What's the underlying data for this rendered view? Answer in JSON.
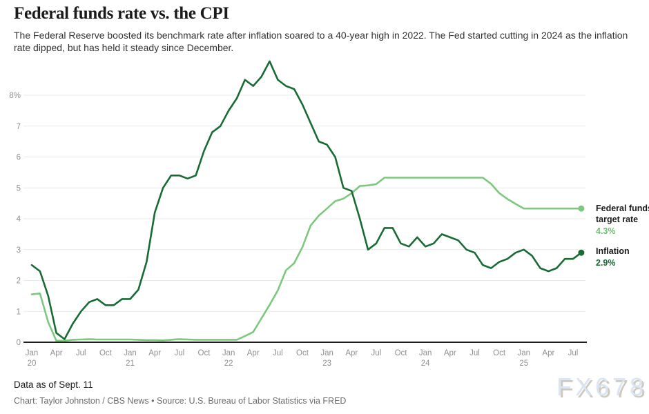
{
  "header": {
    "title": "Federal funds rate vs. the CPI",
    "subtitle": "The Federal Reserve boosted its benchmark rate after inflation soared to a 40-year high in 2022. The Fed started cutting in 2024 as the inflation rate dipped, but has held it steady since December."
  },
  "chart_data": {
    "type": "line",
    "x_start_month": "Jan 2020",
    "x_end_month": "Aug 2025",
    "x_interval": "monthly",
    "grid": "horizontal",
    "ylim": [
      0,
      9.1
    ],
    "y_ticks": [
      {
        "value": 0,
        "label": "0"
      },
      {
        "value": 1,
        "label": "1"
      },
      {
        "value": 2,
        "label": "2"
      },
      {
        "value": 3,
        "label": "3"
      },
      {
        "value": 4,
        "label": "4"
      },
      {
        "value": 5,
        "label": "5"
      },
      {
        "value": 6,
        "label": "6"
      },
      {
        "value": 7,
        "label": "7"
      },
      {
        "value": 8,
        "label": "8%"
      }
    ],
    "x_ticks": [
      {
        "index": 0,
        "label": "Jan",
        "year": "20"
      },
      {
        "index": 3,
        "label": "Apr"
      },
      {
        "index": 6,
        "label": "Jul"
      },
      {
        "index": 9,
        "label": "Oct"
      },
      {
        "index": 12,
        "label": "Jan",
        "year": "21"
      },
      {
        "index": 15,
        "label": "Apr"
      },
      {
        "index": 18,
        "label": "Jul"
      },
      {
        "index": 21,
        "label": "Oct"
      },
      {
        "index": 24,
        "label": "Jan",
        "year": "22"
      },
      {
        "index": 27,
        "label": "Apr"
      },
      {
        "index": 30,
        "label": "Jul"
      },
      {
        "index": 33,
        "label": "Oct"
      },
      {
        "index": 36,
        "label": "Jan",
        "year": "23"
      },
      {
        "index": 39,
        "label": "Apr"
      },
      {
        "index": 42,
        "label": "Jul"
      },
      {
        "index": 45,
        "label": "Oct"
      },
      {
        "index": 48,
        "label": "Jan",
        "year": "24"
      },
      {
        "index": 51,
        "label": "Apr"
      },
      {
        "index": 54,
        "label": "Jul"
      },
      {
        "index": 57,
        "label": "Oct"
      },
      {
        "index": 60,
        "label": "Jan",
        "year": "25"
      },
      {
        "index": 63,
        "label": "Apr"
      },
      {
        "index": 66,
        "label": "Jul"
      }
    ],
    "series": [
      {
        "id": "federal-funds",
        "name": "Federal funds target rate",
        "label_line1": "Federal funds",
        "label_line2": "target rate",
        "value_label": "4.3%",
        "color": "#7ec77f",
        "value_color": "#72bd75",
        "values": [
          1.55,
          1.58,
          0.65,
          0.05,
          0.05,
          0.08,
          0.09,
          0.1,
          0.09,
          0.09,
          0.09,
          0.09,
          0.09,
          0.08,
          0.07,
          0.07,
          0.06,
          0.08,
          0.1,
          0.09,
          0.08,
          0.08,
          0.08,
          0.08,
          0.08,
          0.08,
          0.2,
          0.33,
          0.77,
          1.21,
          1.68,
          2.33,
          2.56,
          3.08,
          3.78,
          4.1,
          4.33,
          4.57,
          4.65,
          4.83,
          5.06,
          5.08,
          5.12,
          5.33,
          5.33,
          5.33,
          5.33,
          5.33,
          5.33,
          5.33,
          5.33,
          5.33,
          5.33,
          5.33,
          5.33,
          5.33,
          5.13,
          4.83,
          4.64,
          4.48,
          4.33,
          4.33,
          4.33,
          4.33,
          4.33,
          4.33,
          4.33,
          4.33
        ]
      },
      {
        "id": "inflation",
        "name": "Inflation",
        "label_line1": "Inflation",
        "label_line2": "",
        "value_label": "2.9%",
        "color": "#176b33",
        "value_color": "#176b33",
        "values": [
          2.5,
          2.3,
          1.5,
          0.3,
          0.1,
          0.6,
          1.0,
          1.3,
          1.4,
          1.2,
          1.2,
          1.4,
          1.4,
          1.7,
          2.6,
          4.2,
          5.0,
          5.4,
          5.4,
          5.3,
          5.4,
          6.2,
          6.8,
          7.0,
          7.5,
          7.9,
          8.5,
          8.3,
          8.6,
          9.1,
          8.5,
          8.3,
          8.2,
          7.7,
          7.1,
          6.5,
          6.4,
          6.0,
          5.0,
          4.9,
          4.0,
          3.0,
          3.2,
          3.7,
          3.7,
          3.2,
          3.1,
          3.4,
          3.1,
          3.2,
          3.5,
          3.4,
          3.3,
          3.0,
          2.9,
          2.5,
          2.4,
          2.6,
          2.7,
          2.9,
          3.0,
          2.8,
          2.4,
          2.3,
          2.4,
          2.7,
          2.7,
          2.9
        ]
      }
    ]
  },
  "footer": {
    "data_as_of": "Data as of Sept. 11",
    "credit": "Chart: Taylor Johnston / CBS News • Source: U.S. Bureau of Labor Statistics via FRED"
  },
  "watermark": "FX678",
  "colors": {
    "grid": "#e9e9e9",
    "axis": "#1d1d1d",
    "tick_text": "#8f8f8f"
  }
}
